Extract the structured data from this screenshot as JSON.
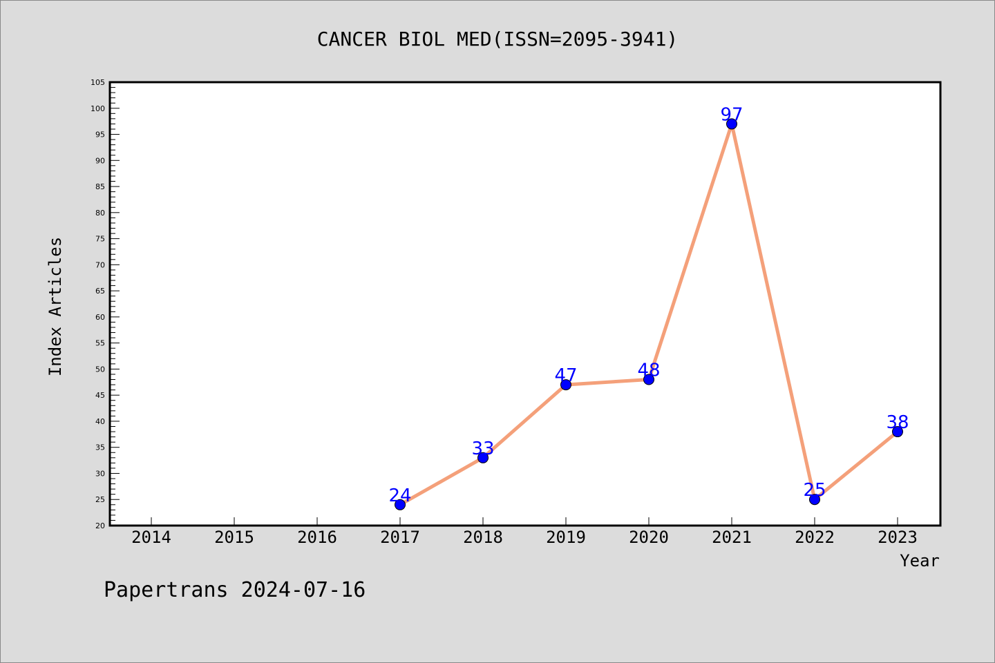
{
  "chart_data": {
    "type": "line",
    "title": "CANCER BIOL MED(ISSN=2095-3941)",
    "xlabel": "Year",
    "ylabel": "Index Articles",
    "categories": [
      "2014",
      "2015",
      "2016",
      "2017",
      "2018",
      "2019",
      "2020",
      "2021",
      "2022",
      "2023"
    ],
    "series": [
      {
        "x": [
          "2017",
          "2018",
          "2019",
          "2020",
          "2021",
          "2022",
          "2023"
        ],
        "values": [
          24,
          33,
          47,
          48,
          97,
          25,
          38
        ]
      }
    ],
    "ylim": [
      20,
      105
    ],
    "ytick_step": 5,
    "grid": false,
    "line_color": "#f4a07a",
    "marker_color": "#0000ff",
    "label_color": "#0000ff"
  },
  "footer": {
    "watermark": "Papertrans 2024-07-16"
  }
}
